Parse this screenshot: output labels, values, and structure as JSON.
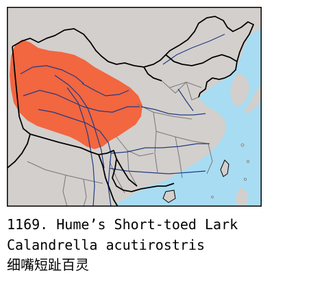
{
  "map": {
    "colors": {
      "land": "#d3cfcc",
      "ocean": "#a8dcf2",
      "range": "#f26640",
      "national_border": "#000000",
      "province_border": "#777777",
      "river": "#1e3a82",
      "frame": "#000000"
    }
  },
  "caption": {
    "number_and_common_name": "1169. Hume’s Short-toed Lark",
    "scientific_name": "Calandrella acutirostris",
    "chinese_name": "细嘴短趾百灵"
  }
}
